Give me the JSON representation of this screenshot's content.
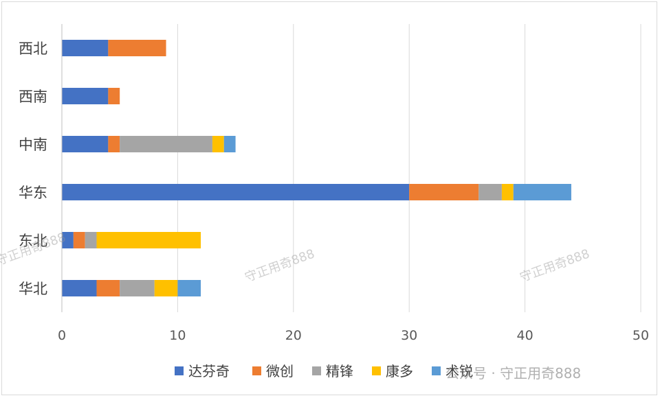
{
  "chart_data": {
    "type": "bar",
    "orientation": "horizontal",
    "stacked": true,
    "categories": [
      "华北",
      "东北",
      "华东",
      "中南",
      "西南",
      "西北"
    ],
    "series": [
      {
        "name": "达芬奇",
        "color": "#4472C4",
        "values": [
          3,
          1,
          30,
          4,
          4,
          4
        ]
      },
      {
        "name": "微创",
        "color": "#ED7D31",
        "values": [
          2,
          1,
          6,
          1,
          1,
          5
        ]
      },
      {
        "name": "精锋",
        "color": "#A5A5A5",
        "values": [
          3,
          1,
          2,
          8,
          0,
          0
        ]
      },
      {
        "name": "康多",
        "color": "#FFC000",
        "values": [
          2,
          9,
          1,
          1,
          0,
          0
        ]
      },
      {
        "name": "术锐",
        "color": "#5B9BD5",
        "values": [
          2,
          0,
          5,
          1,
          0,
          0
        ]
      }
    ],
    "xlim": [
      0,
      50
    ],
    "xticks": [
      0,
      10,
      20,
      30,
      40,
      50
    ],
    "grid": "vertical",
    "legend": "bottom"
  },
  "watermarks": {
    "text": "守正用奇888",
    "footer": "公众号 · 守正用奇888"
  }
}
